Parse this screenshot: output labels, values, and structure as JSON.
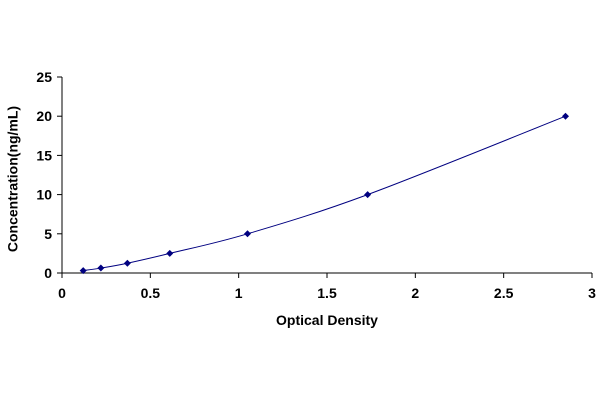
{
  "chart_data": {
    "type": "scatter",
    "title": "",
    "xlabel": "Optical Density",
    "ylabel": "Concentration(ng/mL)",
    "xlim": [
      0,
      3
    ],
    "ylim": [
      0,
      25
    ],
    "xticks": [
      0,
      0.5,
      1,
      1.5,
      2,
      2.5,
      3
    ],
    "yticks": [
      0,
      5,
      10,
      15,
      20,
      25
    ],
    "xtick_labels": [
      "0",
      "0.5",
      "1",
      "1.5",
      "2",
      "2.5",
      "3"
    ],
    "ytick_labels": [
      "0",
      "5",
      "10",
      "15",
      "20",
      "25"
    ],
    "grid": false,
    "legend": "none",
    "fit_line": true,
    "series": [
      {
        "x": [
          0.12,
          0.22,
          0.37,
          0.61,
          1.05,
          1.73,
          2.85
        ],
        "y": [
          0.31,
          0.63,
          1.25,
          2.5,
          5,
          10,
          20
        ]
      }
    ],
    "colors": {
      "line": "#000080",
      "marker": "#000080",
      "axis": "#000000"
    }
  }
}
